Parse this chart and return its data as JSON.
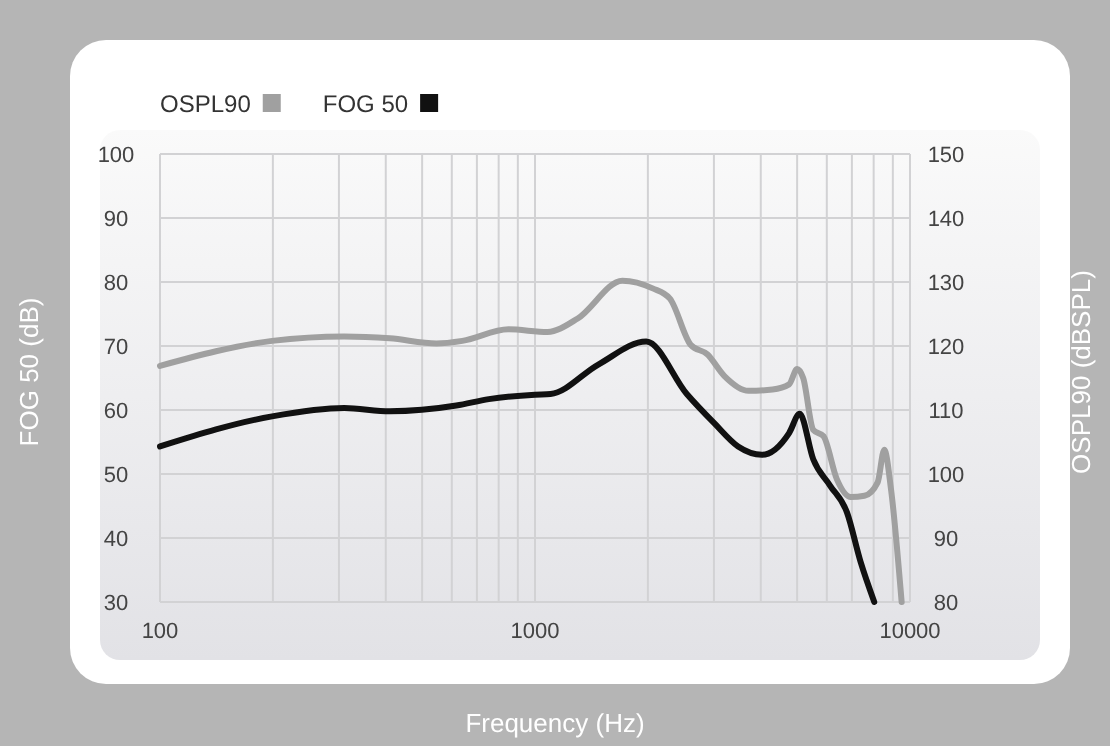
{
  "chart_data": {
    "type": "line",
    "xlabel": "Frequency (Hz)",
    "ylabel": "FOG 50 (dB)",
    "y2label": "OSPL90 (dBSPL)",
    "log": "x",
    "grid": true,
    "legend": "top left",
    "line_style": "solid",
    "marker": "none",
    "xlim": [
      100,
      10000
    ],
    "xticks": [
      100,
      {
        "value": 200,
        "label": null
      },
      {
        "value": 300,
        "label": null
      },
      {
        "value": 400,
        "label": null
      },
      {
        "value": 500,
        "label": null
      },
      {
        "value": 600,
        "label": null
      },
      {
        "value": 700,
        "label": null
      },
      {
        "value": 800,
        "label": null
      },
      {
        "value": 900,
        "label": null
      },
      1000,
      {
        "value": 2000,
        "label": null
      },
      {
        "value": 3000,
        "label": null
      },
      {
        "value": 4000,
        "label": null
      },
      {
        "value": 5000,
        "label": null
      },
      {
        "value": 6000,
        "label": null
      },
      {
        "value": 7000,
        "label": null
      },
      {
        "value": 8000,
        "label": null
      },
      {
        "value": 9000,
        "label": null
      },
      10000
    ],
    "ylim": [
      30,
      100
    ],
    "yticks": [
      30,
      40,
      50,
      60,
      70,
      80,
      90,
      100
    ],
    "y2lim": [
      80,
      150
    ],
    "y2ticks": [
      80,
      90,
      100,
      110,
      120,
      130,
      140,
      150
    ],
    "series": [
      {
        "name": "OSPL90",
        "color": "#a0a0a0",
        "axis": "y2",
        "x": [
          100,
          199,
          310,
          410,
          546,
          640,
          850,
          1080,
          1300,
          1710,
          2060,
          2290,
          2600,
          2880,
          3200,
          3710,
          4300,
          4760,
          5000,
          5190,
          5520,
          5880,
          6380,
          6950,
          7560,
          8200,
          8540,
          8900,
          9500
        ],
        "values": [
          116.9,
          120.8,
          121.5,
          121.2,
          120.4,
          120.8,
          122.6,
          122.2,
          124.3,
          130.2,
          129,
          127.4,
          120.2,
          118.7,
          115.3,
          113,
          113.2,
          114,
          116.4,
          115,
          106.9,
          105.9,
          99.2,
          96.4,
          96.6,
          98.7,
          103.8,
          97.6,
          80
        ]
      },
      {
        "name": "FOG 50",
        "color": "#111111",
        "x": [
          100,
          199,
          310,
          410,
          617,
          753,
          1000,
          1100,
          1475,
          1980,
          2540,
          3010,
          3480,
          4030,
          4760,
          5080,
          5520,
          6120,
          6790,
          7380,
          8030
        ],
        "values": [
          54.3,
          59,
          60.3,
          59.8,
          60.7,
          61.7,
          62.4,
          62.5,
          67.1,
          70.7,
          62.5,
          57.9,
          54.3,
          53,
          56.4,
          59.4,
          52.3,
          48.2,
          44,
          36.3,
          30
        ]
      }
    ]
  }
}
